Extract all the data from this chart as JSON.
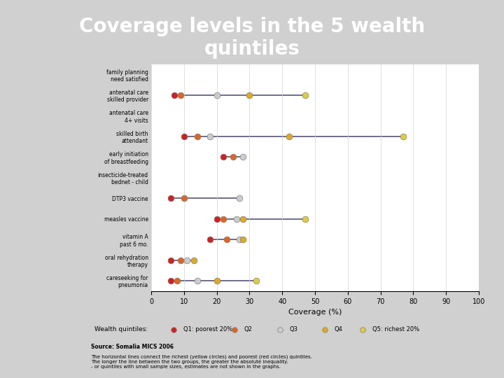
{
  "title": "Coverage levels in the 5 wealth\nquintiles",
  "title_bg_color": "#b03a3a",
  "title_text_color": "#ffffff",
  "chart_bg_color": "#e8e8e8",
  "plot_bg_color": "#ffffff",
  "xlabel": "Coverage (%)",
  "xlim": [
    0,
    100
  ],
  "xticks": [
    0,
    10,
    20,
    30,
    40,
    50,
    60,
    70,
    80,
    90,
    100
  ],
  "categories": [
    "family planning\nneed satisfied",
    "antenatal care\nskilled provider",
    "antenatal care\n4+ visits",
    "skilled birth\nattendant",
    "early initiation\nof breastfeeding",
    "insecticide-treated\nbednet - child",
    "DTP3 vaccine",
    "measles vaccine",
    "vitamin A\npast 6 mo.",
    "oral rehydration\ntherapy",
    "careseeking for\npneumonia"
  ],
  "quintile_colors": [
    "#cc2222",
    "#dd6622",
    "#cccccc",
    "#ddaa22",
    "#ddcc44"
  ],
  "quintile_labels": [
    "Q1: poorest 20%",
    "Q2",
    "Q3",
    "Q4",
    "Q5: richest 20%"
  ],
  "data": {
    "family planning\nneed satisfied": [
      null,
      null,
      null,
      null,
      null
    ],
    "antenatal care\nskilled provider": [
      7,
      9,
      20,
      30,
      47
    ],
    "antenatal care\n4+ visits": [
      null,
      null,
      null,
      null,
      null
    ],
    "skilled birth\nattendant": [
      10,
      14,
      18,
      42,
      77
    ],
    "early initiation\nof breastfeeding": [
      22,
      25,
      28,
      null,
      null
    ],
    "insecticide-treated\nbednet - child": [
      null,
      null,
      null,
      null,
      null
    ],
    "DTP3 vaccine": [
      6,
      10,
      27,
      null,
      null
    ],
    "measles vaccine": [
      20,
      22,
      26,
      28,
      47
    ],
    "vitamin A\npast 6 mo.": [
      18,
      23,
      27,
      28,
      null
    ],
    "oral rehydration\ntherapy": [
      6,
      9,
      11,
      13,
      null
    ],
    "careseeking for\npneumonia": [
      6,
      8,
      14,
      20,
      32
    ]
  },
  "source_text": "Source: Somalia MICS 2006",
  "note_text": "The horizontal lines connect the richest (yellow circles) and poorest (red circles) quintiles.\nThe longer the line between the two groups, the greater the absolute inequality.\n- or quintiles with small sample sizes, estimates are not shown in the graphs."
}
